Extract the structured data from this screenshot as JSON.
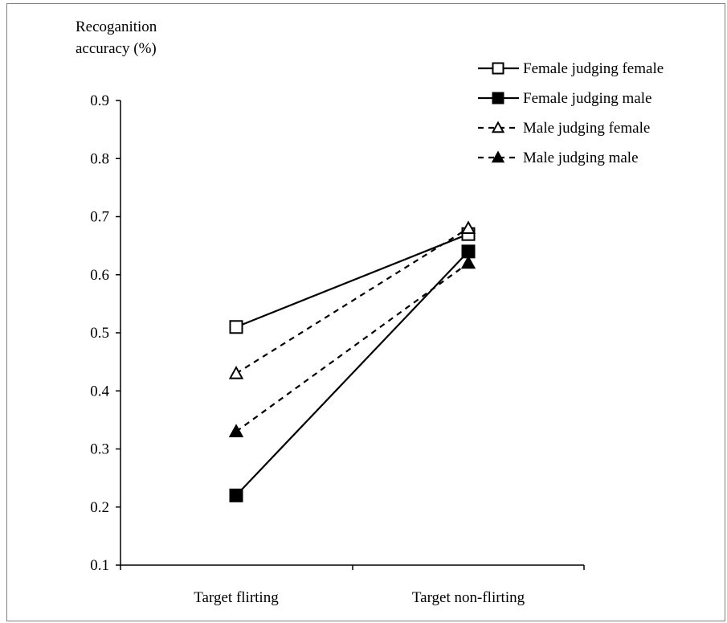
{
  "chart_data": {
    "type": "line",
    "title": "",
    "ylabel": [
      "Recoganition",
      "accuracy (%)"
    ],
    "xlabel": "",
    "categories": [
      "Target flirting",
      "Target non-flirting"
    ],
    "ylim": [
      0.1,
      0.9
    ],
    "yticks": [
      "0.1",
      "0.2",
      "0.3",
      "0.4",
      "0.5",
      "0.6",
      "0.7",
      "0.8",
      "0.9"
    ],
    "grid": false,
    "legend_position": "top-right",
    "series": [
      {
        "name": "Female judging female",
        "values": [
          0.51,
          0.67
        ],
        "marker": "square-open",
        "line": "solid",
        "color": "#000000"
      },
      {
        "name": "Female judging male",
        "values": [
          0.22,
          0.64
        ],
        "marker": "square-filled",
        "line": "solid",
        "color": "#000000"
      },
      {
        "name": "Male judging female",
        "values": [
          0.43,
          0.68
        ],
        "marker": "triangle-open",
        "line": "dashed",
        "color": "#000000"
      },
      {
        "name": "Male judging male",
        "values": [
          0.33,
          0.62
        ],
        "marker": "triangle-filled",
        "line": "dashed",
        "color": "#000000"
      }
    ]
  }
}
